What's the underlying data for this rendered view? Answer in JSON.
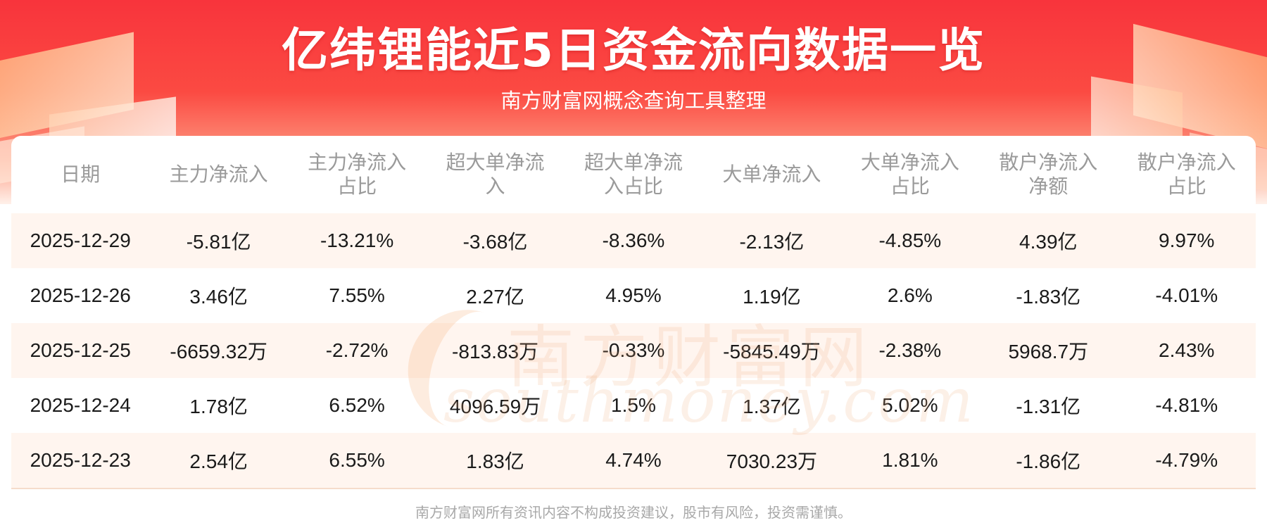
{
  "header": {
    "title": "亿纬锂能近5日资金流向数据一览",
    "subtitle": "南方财富网概念查询工具整理"
  },
  "table": {
    "columns": [
      [
        "日期"
      ],
      [
        "主力净流入"
      ],
      [
        "主力净流入",
        "占比"
      ],
      [
        "超大单净流",
        "入"
      ],
      [
        "超大单净流",
        "入占比"
      ],
      [
        "大单净流入"
      ],
      [
        "大单净流入",
        "占比"
      ],
      [
        "散户净流入",
        "净额"
      ],
      [
        "散户净流入",
        "占比"
      ]
    ],
    "rows": [
      [
        "2025-12-29",
        "-5.81亿",
        "-13.21%",
        "-3.68亿",
        "-8.36%",
        "-2.13亿",
        "-4.85%",
        "4.39亿",
        "9.97%"
      ],
      [
        "2025-12-26",
        "3.46亿",
        "7.55%",
        "2.27亿",
        "4.95%",
        "1.19亿",
        "2.6%",
        "-1.83亿",
        "-4.01%"
      ],
      [
        "2025-12-25",
        "-6659.32万",
        "-2.72%",
        "-813.83万",
        "-0.33%",
        "-5845.49万",
        "-2.38%",
        "5968.7万",
        "2.43%"
      ],
      [
        "2025-12-24",
        "1.78亿",
        "6.52%",
        "4096.59万",
        "1.5%",
        "1.37亿",
        "5.02%",
        "-1.31亿",
        "-4.81%"
      ],
      [
        "2025-12-23",
        "2.54亿",
        "6.55%",
        "1.83亿",
        "4.74%",
        "7030.23万",
        "1.81%",
        "-1.86亿",
        "-4.79%"
      ]
    ]
  },
  "watermark": {
    "cn": "南方财富网",
    "en": "southmoney.com"
  },
  "footer": {
    "disclaimer": "南方财富网所有资讯内容不构成投资建议，股市有风险，投资需谨慎。"
  }
}
